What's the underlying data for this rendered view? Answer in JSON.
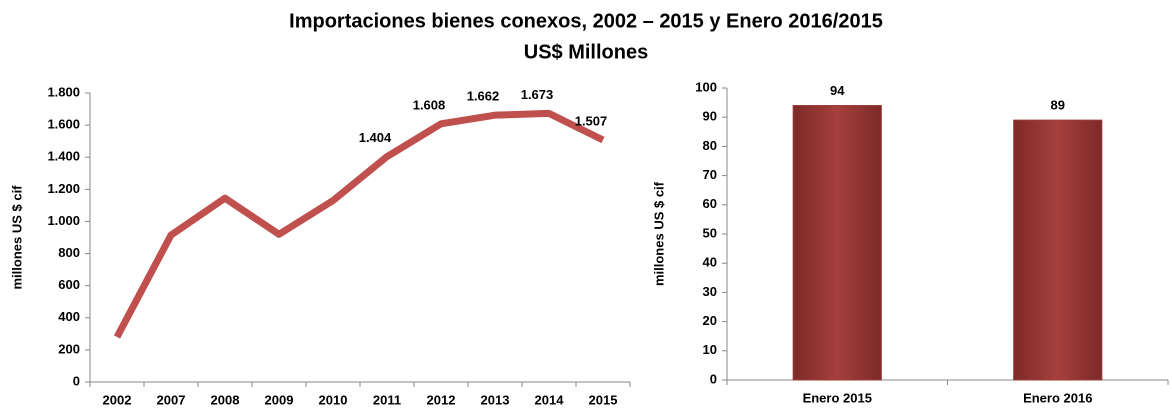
{
  "title": "Importaciones bienes conexos, 2002 – 2015 y Enero 2016/2015",
  "subtitle": "US$ Millones",
  "chart_data": [
    {
      "type": "line",
      "y_label": "millones US $ cif",
      "color": "#c0504d",
      "categories": [
        "2002",
        "2007",
        "2008",
        "2009",
        "2010",
        "2011",
        "2012",
        "2013",
        "2014",
        "2015"
      ],
      "values": [
        280,
        915,
        1145,
        920,
        1130,
        1404,
        1608,
        1662,
        1673,
        1507
      ],
      "value_labels": [
        null,
        null,
        null,
        null,
        null,
        "1.404",
        "1.608",
        "1.662",
        "1.673",
        "1.507"
      ],
      "ylim": [
        0,
        1800
      ],
      "yticks": [
        0,
        200,
        400,
        600,
        800,
        {
          "value": 1000,
          "label": "1.000"
        },
        {
          "value": 1200,
          "label": "1.200"
        },
        {
          "value": 1400,
          "label": "1.400"
        },
        {
          "value": 1600,
          "label": "1.600"
        },
        {
          "value": 1800,
          "label": "1.800"
        }
      ]
    },
    {
      "type": "bar",
      "y_label": "millones US $ cif",
      "color": "#9b3b39",
      "categories": [
        "Enero 2015",
        "Enero 2016"
      ],
      "values": [
        94,
        89
      ],
      "ylim": [
        0,
        100
      ],
      "yticks": [
        0,
        10,
        20,
        30,
        40,
        50,
        60,
        70,
        80,
        90,
        100
      ]
    }
  ]
}
